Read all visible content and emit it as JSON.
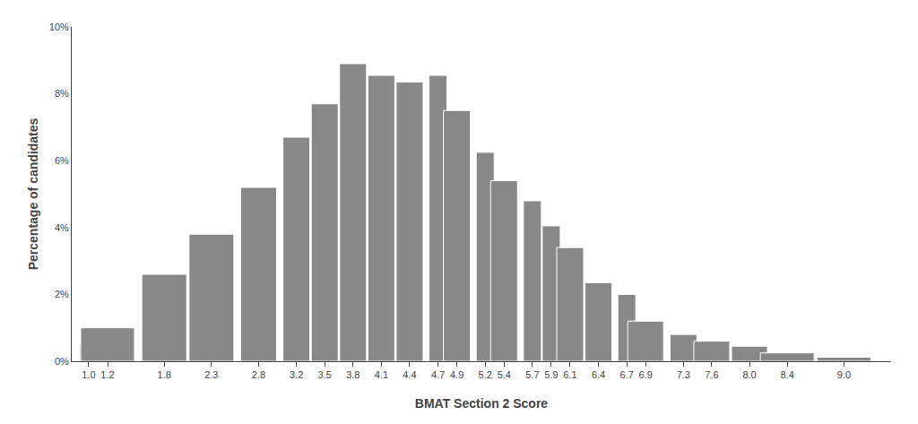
{
  "chart_data": {
    "type": "bar",
    "x": [
      1.0,
      1.2,
      1.8,
      2.3,
      2.8,
      3.2,
      3.5,
      3.8,
      4.1,
      4.4,
      4.7,
      4.9,
      5.2,
      5.4,
      5.7,
      5.9,
      6.1,
      6.4,
      6.7,
      6.9,
      7.3,
      7.6,
      8.0,
      8.4,
      9.0
    ],
    "values": [
      0.5,
      1.0,
      2.6,
      3.8,
      5.2,
      6.7,
      7.7,
      8.9,
      8.55,
      8.35,
      8.55,
      7.5,
      6.25,
      5.4,
      4.8,
      4.05,
      3.4,
      2.35,
      2.0,
      1.2,
      0.8,
      0.6,
      0.45,
      0.25,
      0.12
    ],
    "color": "#888888",
    "xlabel": "BMAT Section 2 Score",
    "ylabel": "Percentage of candidates",
    "xlim": [
      0.82,
      9.5
    ],
    "xticks": [
      {
        "value": 1.0,
        "label": "1.0"
      },
      1.2,
      1.8,
      2.3,
      2.8,
      3.2,
      3.5,
      3.8,
      4.1,
      4.4,
      4.7,
      4.9,
      5.2,
      5.4,
      5.7,
      5.9,
      6.1,
      6.4,
      6.7,
      6.9,
      7.3,
      7.6,
      {
        "value": 8.0,
        "label": "8.0"
      },
      8.4,
      {
        "value": 9.0,
        "label": "9.0"
      }
    ],
    "ylim": [
      0,
      10
    ],
    "yticks": [
      {
        "value": 0,
        "label": "0%"
      },
      {
        "value": 2,
        "label": "2%"
      },
      {
        "value": 4,
        "label": "4%"
      },
      {
        "value": 6,
        "label": "6%"
      },
      {
        "value": 8,
        "label": "8%"
      },
      {
        "value": 10,
        "label": "10%"
      }
    ],
    "grid": false
  }
}
